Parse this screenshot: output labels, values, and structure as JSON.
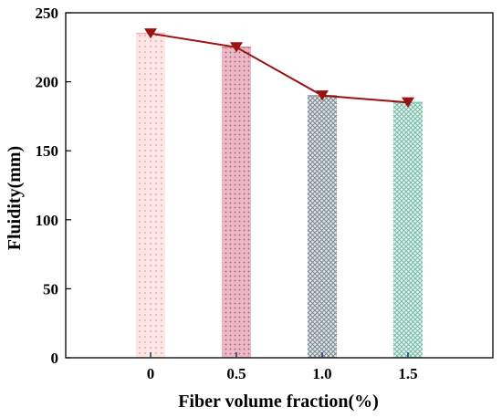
{
  "chart_data": {
    "type": "bar",
    "xlabel": "Fiber volume fraction(%)",
    "ylabel": "Fluidity(mm)",
    "categories": [
      "0",
      "0.5",
      "1.0",
      "1.5"
    ],
    "values": [
      235,
      225,
      190,
      185
    ],
    "line_values": [
      235,
      225,
      190,
      185
    ],
    "ylim": [
      0,
      250
    ],
    "yticks": [
      0,
      50,
      100,
      150,
      200,
      250
    ],
    "bar_colors": [
      "#f7b3b3",
      "#d9879a",
      "#9aa6ab",
      "#88c9b7"
    ],
    "line_color": "#9b1010",
    "marker": "down-triangle",
    "grid": false,
    "legend": "none"
  }
}
